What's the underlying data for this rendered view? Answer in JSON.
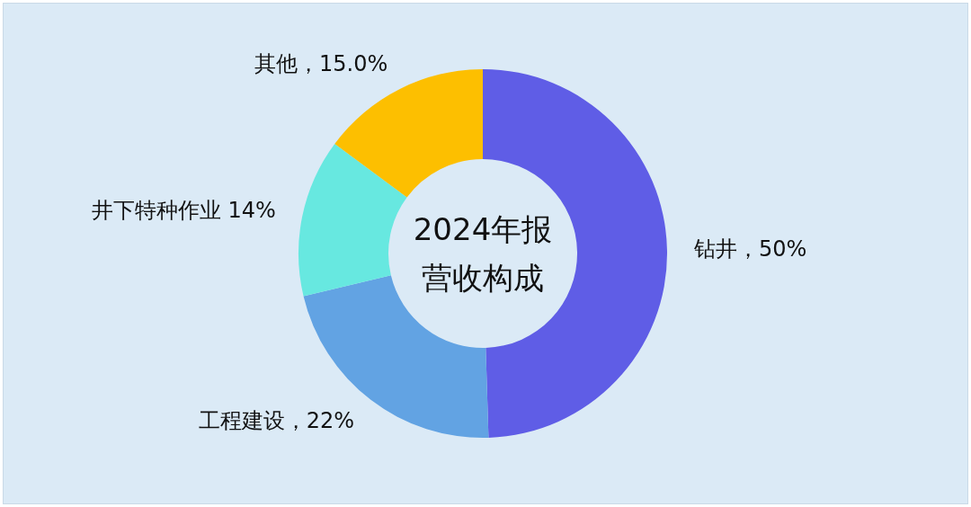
{
  "chart_data": {
    "type": "donut",
    "title": "2024年报营收构成",
    "categories": [
      "钻井",
      "工程建设",
      "井下特种作业",
      "其他"
    ],
    "values": [
      50,
      22,
      14,
      15.0
    ],
    "colors": [
      "#5f5de6",
      "#62a3e3",
      "#67e8e0",
      "#fdbf00"
    ],
    "value_labels": [
      "，50%",
      "，22%",
      " 14%",
      "，15.0%"
    ]
  }
}
